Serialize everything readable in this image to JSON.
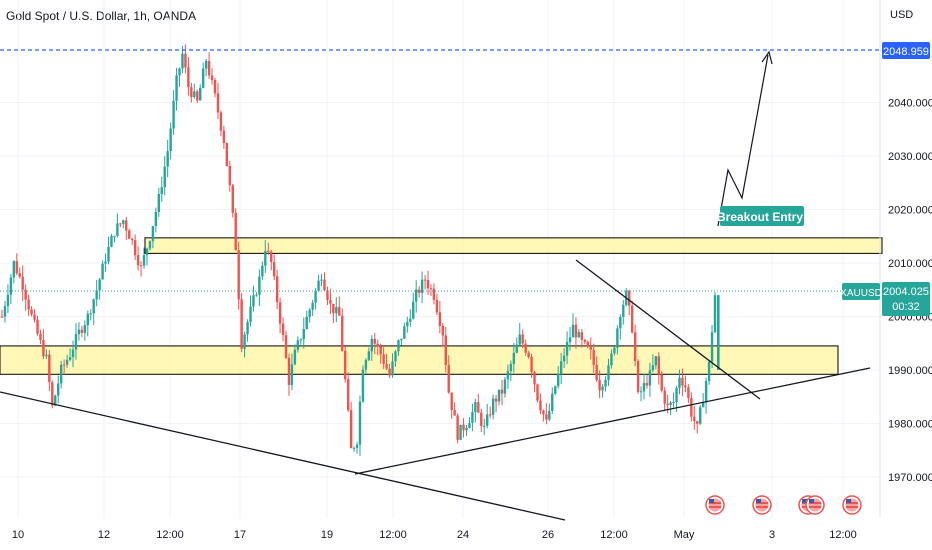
{
  "title": "Gold Spot / U.S. Dollar, 1h, OANDA",
  "currency": "USD",
  "annotation": "Breakout Entry!",
  "colors": {
    "up": "#26a69a",
    "down": "#ef5350",
    "zone_fill": "#fff59d",
    "zone_stroke": "#000000",
    "target_line": "#2962ff",
    "price_badge": "#26a69a",
    "target_badge": "#2962ff"
  },
  "chart_data": {
    "type": "candlestick",
    "symbol": "XAUUSD",
    "y_ticks": [
      1970,
      1980,
      1990,
      2000,
      2010,
      2020,
      2030,
      2040
    ],
    "y_tick_labels": [
      "1970.000",
      "1980.000",
      "1990.000",
      "2000.000",
      "2010.000",
      "2020.000",
      "2030.000",
      "2040.000"
    ],
    "x_tick_labels": [
      "10",
      "12",
      "12:00",
      "17",
      "19",
      "12:00",
      "24",
      "26",
      "12:00",
      "May",
      "3",
      "12:00"
    ],
    "current_price": "2004.025",
    "countdown": "00:32",
    "target_price": "2048.959",
    "zones": [
      {
        "name": "resistance",
        "low": 2011.8,
        "high": 2014.7
      },
      {
        "name": "support",
        "low": 1989.2,
        "high": 1994.5
      }
    ],
    "price_path": [
      [
        0,
        2000
      ],
      [
        2,
        2005
      ],
      [
        4,
        2010
      ],
      [
        7,
        2006
      ],
      [
        10,
        2000
      ],
      [
        13,
        1995
      ],
      [
        15,
        1992
      ],
      [
        17,
        1983
      ],
      [
        20,
        1990
      ],
      [
        23,
        1993
      ],
      [
        26,
        1997
      ],
      [
        29,
        2000
      ],
      [
        32,
        2005
      ],
      [
        35,
        2011
      ],
      [
        38,
        2016
      ],
      [
        41,
        2018
      ],
      [
        44,
        2014
      ],
      [
        47,
        2009
      ],
      [
        50,
        2015
      ],
      [
        53,
        2022
      ],
      [
        56,
        2031
      ],
      [
        59,
        2044
      ],
      [
        61,
        2049
      ],
      [
        63,
        2043
      ],
      [
        66,
        2040
      ],
      [
        69,
        2048
      ],
      [
        72,
        2041
      ],
      [
        75,
        2033
      ],
      [
        77,
        2024
      ],
      [
        79,
        2013
      ],
      [
        81,
        1995
      ],
      [
        84,
        2001
      ],
      [
        87,
        2007
      ],
      [
        89,
        2013
      ],
      [
        91,
        2010
      ],
      [
        93,
        2003
      ],
      [
        95,
        1996
      ],
      [
        97,
        1988
      ],
      [
        99,
        1993
      ],
      [
        102,
        1998
      ],
      [
        105,
        2003
      ],
      [
        108,
        2008
      ],
      [
        111,
        2002
      ],
      [
        114,
        2000
      ],
      [
        116,
        1988
      ],
      [
        118,
        1975
      ],
      [
        120,
        1977
      ],
      [
        122,
        1991
      ],
      [
        125,
        1996
      ],
      [
        128,
        1993
      ],
      [
        131,
        1989
      ],
      [
        134,
        1995
      ],
      [
        137,
        1999
      ],
      [
        140,
        2004
      ],
      [
        143,
        2007
      ],
      [
        146,
        2004
      ],
      [
        149,
        1997
      ],
      [
        151,
        1986
      ],
      [
        154,
        1978
      ],
      [
        157,
        1980
      ],
      [
        160,
        1983
      ],
      [
        163,
        1979
      ],
      [
        166,
        1984
      ],
      [
        169,
        1986
      ],
      [
        172,
        1991
      ],
      [
        175,
        1996
      ],
      [
        178,
        1993
      ],
      [
        181,
        1985
      ],
      [
        184,
        1980
      ],
      [
        187,
        1987
      ],
      [
        190,
        1993
      ],
      [
        193,
        1998
      ],
      [
        196,
        1995
      ],
      [
        199,
        1993
      ],
      [
        202,
        1987
      ],
      [
        205,
        1990
      ],
      [
        207,
        1995
      ],
      [
        209,
        2001
      ],
      [
        211,
        2004
      ],
      [
        213,
        1998
      ],
      [
        215,
        1985
      ],
      [
        217,
        1987
      ],
      [
        219,
        1989
      ],
      [
        221,
        1992
      ],
      [
        223,
        1986
      ],
      [
        225,
        1983
      ],
      [
        227,
        1984
      ],
      [
        229,
        1989
      ],
      [
        231,
        1987
      ],
      [
        233,
        1982
      ],
      [
        235,
        1979
      ],
      [
        237,
        1985
      ],
      [
        239,
        1991
      ],
      [
        241,
        2004
      ]
    ]
  }
}
